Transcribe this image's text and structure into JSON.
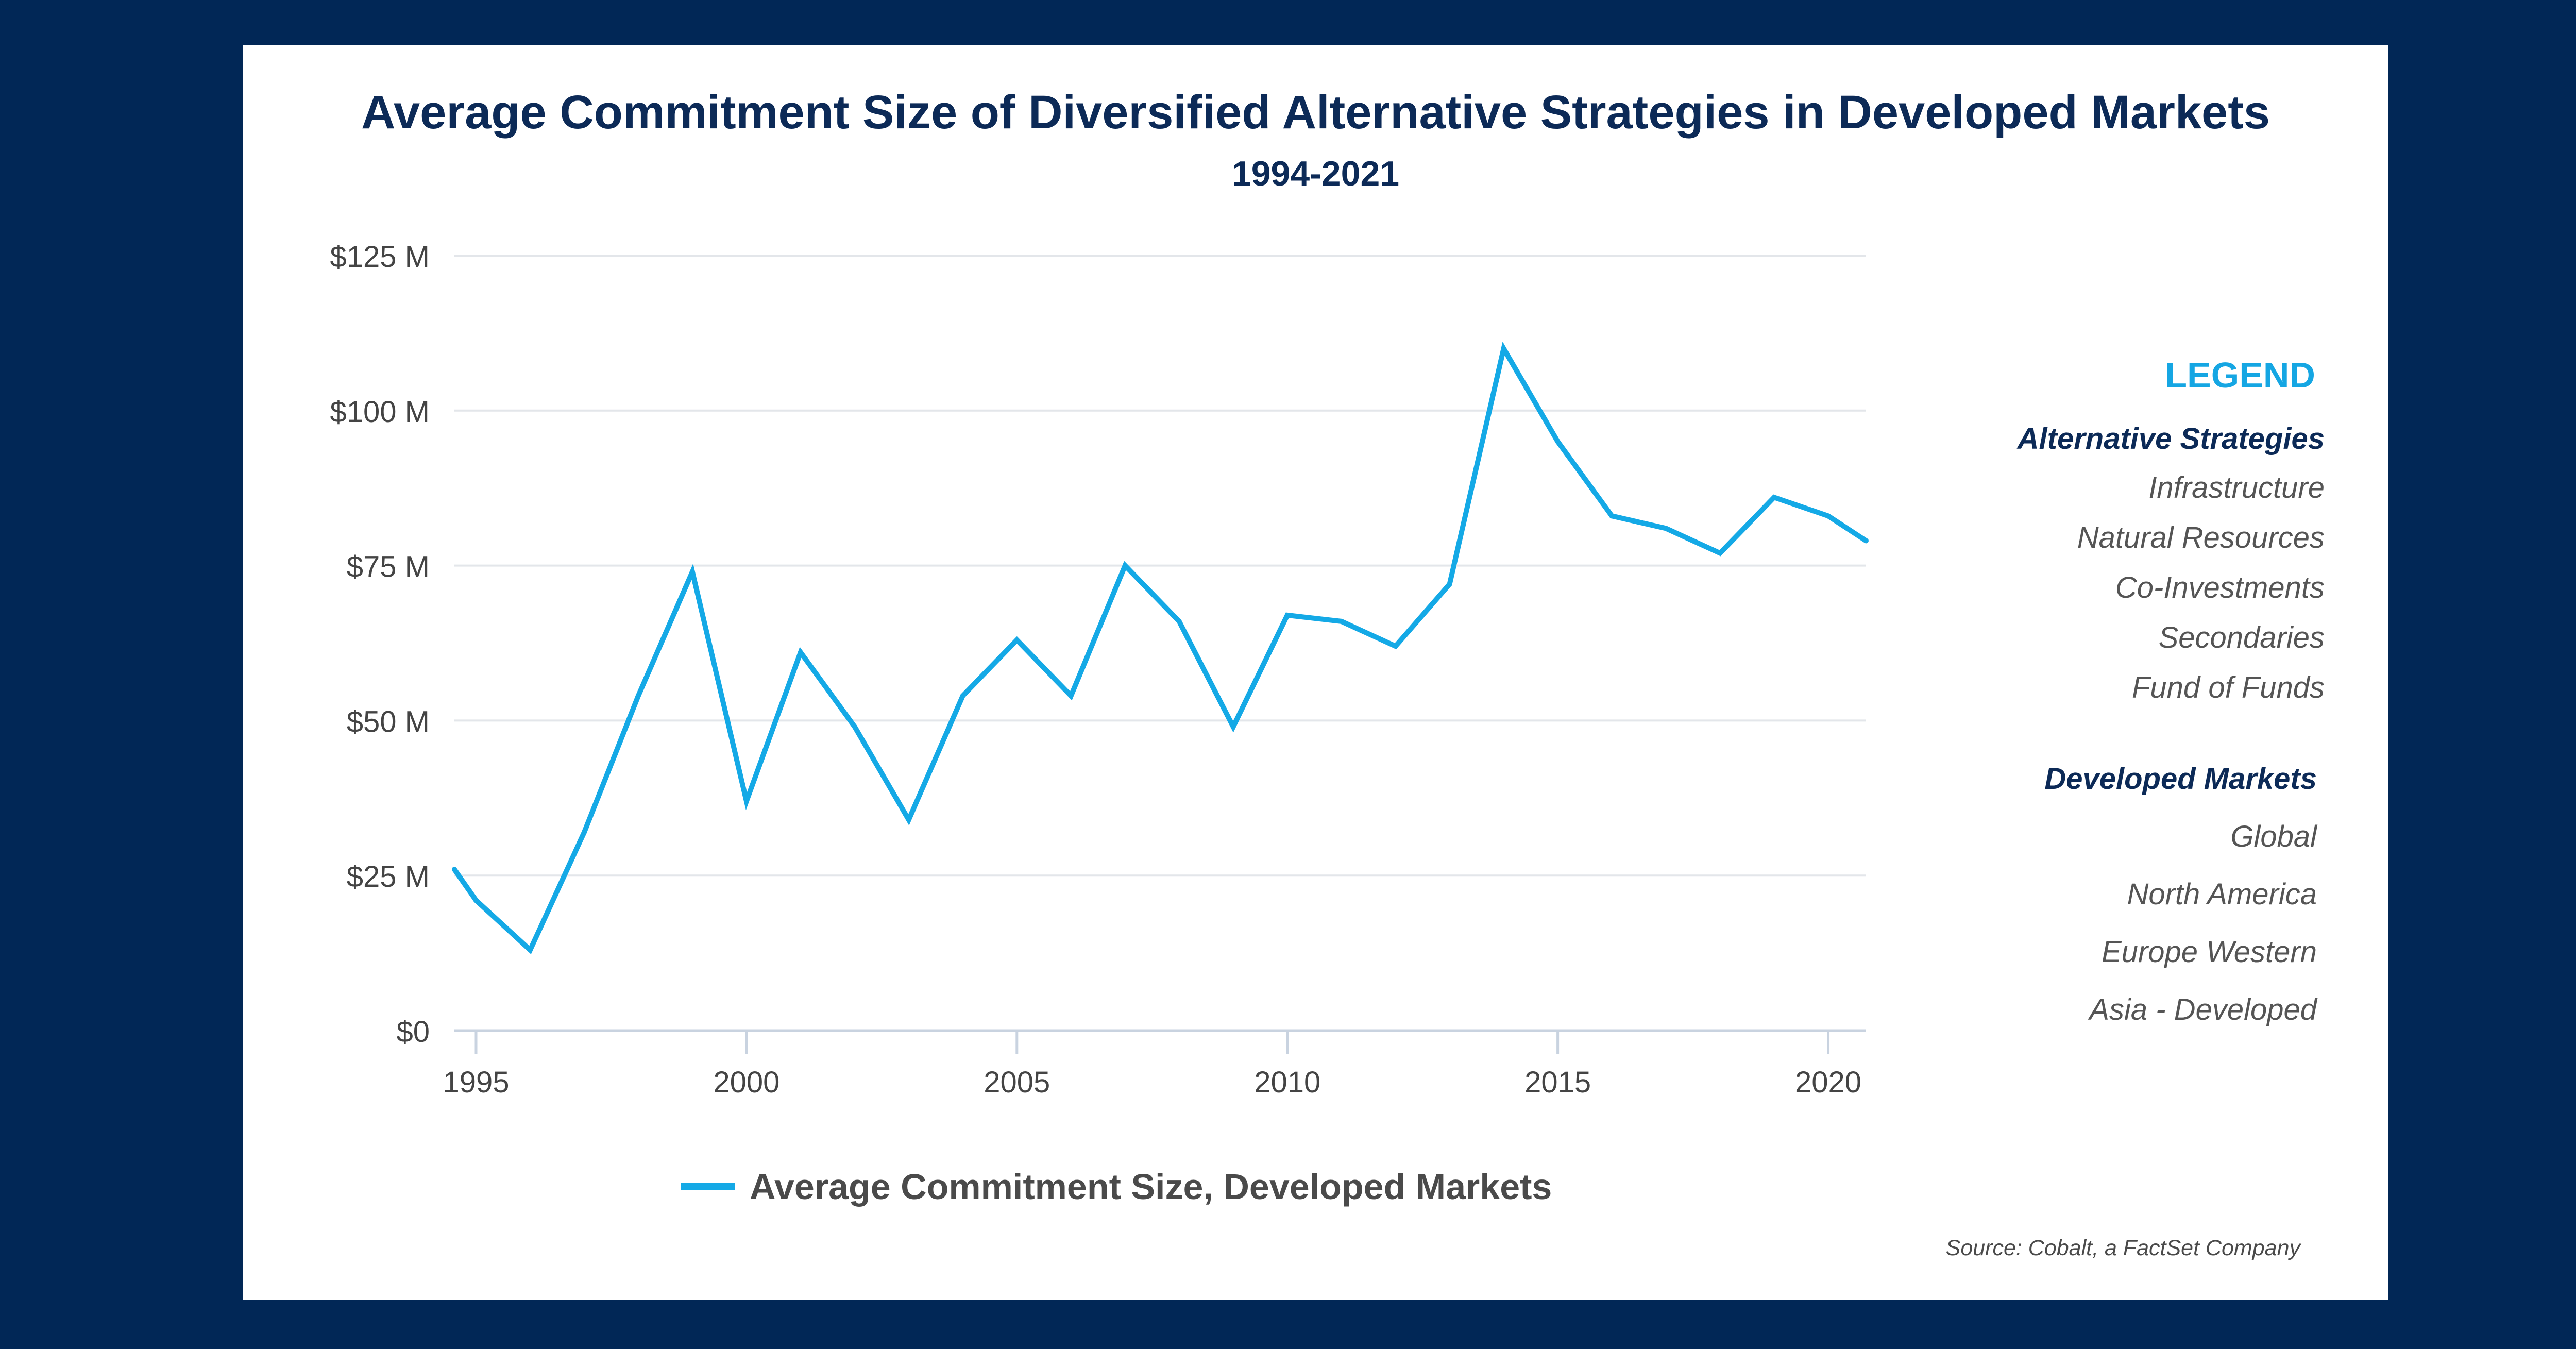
{
  "chart_data": {
    "type": "line",
    "title": "Average Commitment Size of Diversified Alternative Strategies in Developed Markets",
    "subtitle": "1994-2021",
    "x": [
      1994.6,
      1995,
      1996,
      1997,
      1998,
      1999,
      2000,
      2001,
      2002,
      2003,
      2004,
      2005,
      2006,
      2007,
      2008,
      2009,
      2010,
      2011,
      2012,
      2013,
      2014,
      2015,
      2016,
      2017,
      2018,
      2019,
      2020,
      2020.7
    ],
    "series": [
      {
        "name": "Average Commitment Size, Developed Markets",
        "values": [
          26,
          21,
          13,
          32,
          54,
          74,
          37,
          61,
          49,
          34,
          54,
          63,
          54,
          75,
          66,
          49,
          67,
          66,
          62,
          72,
          110,
          95,
          83,
          81,
          77,
          86,
          83,
          79
        ]
      }
    ],
    "xlim": [
      1994.6,
      2020.7
    ],
    "ylim": [
      0,
      125
    ],
    "x_ticks": [
      1995,
      2000,
      2005,
      2010,
      2015,
      2020
    ],
    "x_tick_labels": [
      "1995",
      "2000",
      "2005",
      "2010",
      "2015",
      "2020"
    ],
    "y_ticks": [
      0,
      25,
      50,
      75,
      100,
      125
    ],
    "y_tick_labels": [
      "$0",
      "$25 M",
      "$50 M",
      "$75 M",
      "$100 M",
      "$125 M"
    ],
    "grid": true,
    "legend": "bottom",
    "line_color": "#14a9e6"
  },
  "legend_panel": {
    "heading": "LEGEND",
    "groups": [
      {
        "title": "Alternative Strategies",
        "items": [
          "Infrastructure",
          "Natural Resources",
          "Co-Investments",
          "Secondaries",
          "Fund of Funds"
        ]
      },
      {
        "title": "Developed Markets",
        "items": [
          "Global",
          "North America",
          "Europe Western",
          "Asia - Developed"
        ]
      }
    ]
  },
  "source": "Source: Cobalt, a FactSet Company",
  "colors": {
    "background": "#012756",
    "title": "#0c2a57",
    "accent": "#15a6e3"
  }
}
